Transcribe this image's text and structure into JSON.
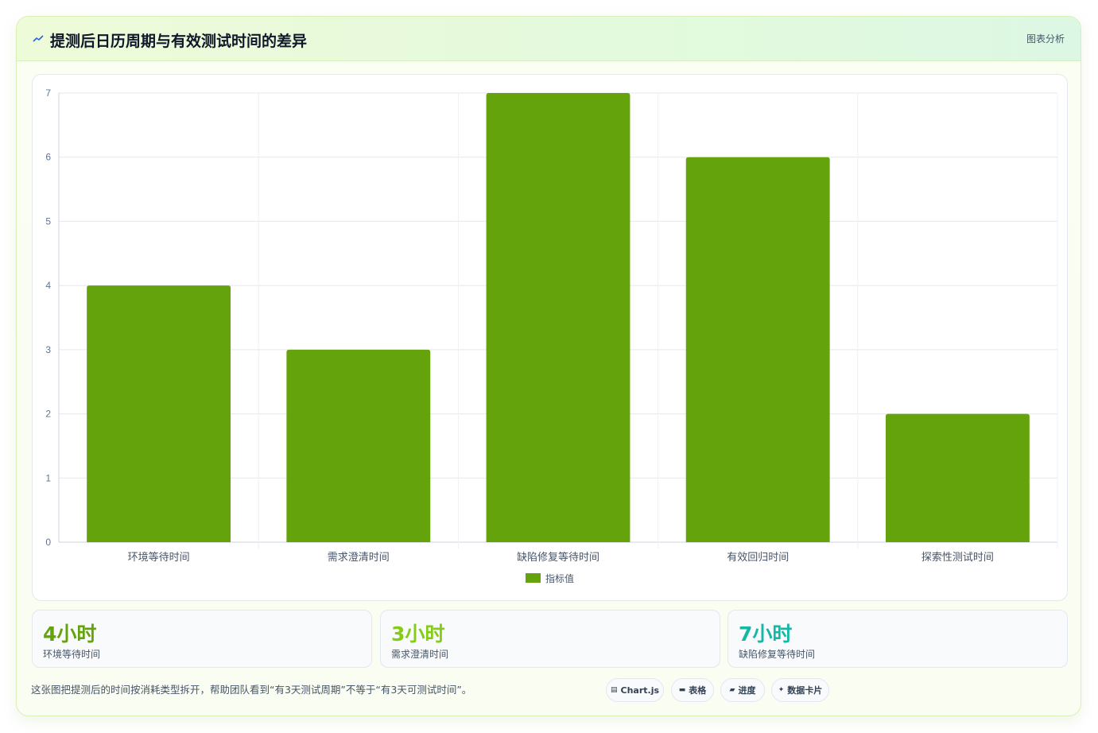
{
  "header": {
    "title": "提测后日历周期与有效测试时间的差异",
    "tag": "图表分析"
  },
  "chart_data": {
    "type": "bar",
    "categories": [
      "环境等待时间",
      "需求澄清时间",
      "缺陷修复等待时间",
      "有效回归时间",
      "探索性测试时间"
    ],
    "series": [
      {
        "name": "指标值",
        "values": [
          4,
          3,
          7,
          6,
          2
        ],
        "color": "#65a30d"
      }
    ],
    "ylim": [
      0,
      7
    ],
    "yticks": [
      0,
      1,
      2,
      3,
      4,
      5,
      6,
      7
    ],
    "grid": true,
    "legend": "bottom"
  },
  "stats": [
    {
      "value": "4小时",
      "label": "环境等待时间",
      "color": "#65a30d"
    },
    {
      "value": "3小时",
      "label": "需求澄清时间",
      "color": "#84cc16"
    },
    {
      "value": "7小时",
      "label": "缺陷修复等待时间",
      "color": "#14b8a6"
    }
  ],
  "footnote": "这张图把提测后的时间按消耗类型拆开，帮助团队看到“有3天测试周期”不等于“有3天可测试时间”。",
  "pills": [
    {
      "icon": "chart-icon",
      "glyph": "▤",
      "label": "Chart.js"
    },
    {
      "icon": "table-icon",
      "glyph": "▬",
      "label": "表格"
    },
    {
      "icon": "progress-icon",
      "glyph": "▰",
      "label": "进度"
    },
    {
      "icon": "card-icon",
      "glyph": "✦",
      "label": "数据卡片"
    }
  ]
}
